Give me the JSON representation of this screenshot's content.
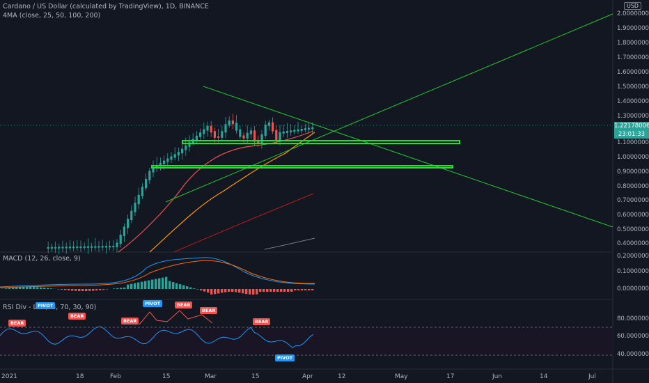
{
  "header": {
    "symbol_line": "Cardano / US Dollar (calculated by TradingView), 1D, BINANCE",
    "indicator_line": "4MA (close, 25, 50, 100, 200)"
  },
  "currency_badge": "USD",
  "last_price": {
    "value": "1.22178006",
    "countdown": "23:01:33"
  },
  "price_axis": [
    "2.00000000",
    "1.90000000",
    "1.80000000",
    "1.70000000",
    "1.60000000",
    "1.50000000",
    "1.40000000",
    "1.30000000",
    "1.10000000",
    "1.00000000",
    "0.90000000",
    "0.80000000",
    "0.70000000",
    "0.60000000",
    "0.50000000",
    "0.40000000"
  ],
  "macd": {
    "title": "MACD (12, 26, close, 9)",
    "axis": [
      "0.20000000",
      "0.10000000",
      "0.00000000"
    ]
  },
  "rsi": {
    "title": "RSI Div - Lib (14, 70, 30, 90)",
    "axis": [
      "80.00000000",
      "60.00000000",
      "40.00000000"
    ],
    "bear_label": "BEAR",
    "pivot_label": "PIVOT"
  },
  "time_axis": [
    "2021",
    "18",
    "Feb",
    "15",
    "Mar",
    "15",
    "Apr",
    "12",
    "May",
    "17",
    "Jun",
    "14",
    "Jul"
  ],
  "colors": {
    "up": "#26a69a",
    "down": "#ef5350",
    "trend": "#22c52d",
    "macd": "#2196f3",
    "signal": "#ff6d00"
  }
}
